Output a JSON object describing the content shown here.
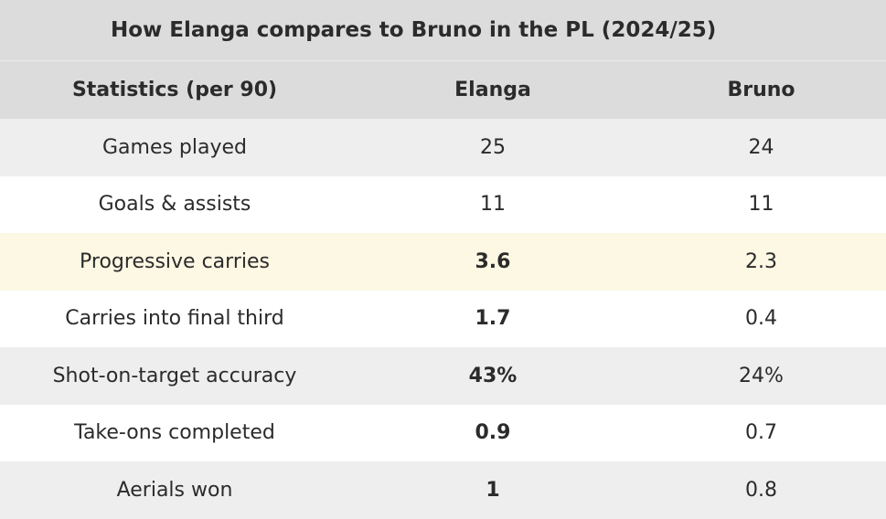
{
  "title": "How Elanga compares to Bruno in the PL (2024/25)",
  "headers": [
    "Statistics (per 90)",
    "Elanga",
    "Bruno"
  ],
  "rows": [
    {
      "label": "Games played",
      "elanga": "25",
      "bruno": "24",
      "elanga_bold": false,
      "style": "shade"
    },
    {
      "label": "Goals & assists",
      "elanga": "11",
      "bruno": "11",
      "elanga_bold": false,
      "style": "plain"
    },
    {
      "label": "Progressive carries",
      "elanga": "3.6",
      "bruno": "2.3",
      "elanga_bold": true,
      "style": "highlight"
    },
    {
      "label": "Carries into final third",
      "elanga": "1.7",
      "bruno": "0.4",
      "elanga_bold": true,
      "style": "plain"
    },
    {
      "label": "Shot-on-target accuracy",
      "elanga": "43%",
      "bruno": "24%",
      "elanga_bold": true,
      "style": "shade"
    },
    {
      "label": "Take-ons completed",
      "elanga": "0.9",
      "bruno": "0.7",
      "elanga_bold": true,
      "style": "plain"
    },
    {
      "label": "Aerials won",
      "elanga": "1",
      "bruno": "0.8",
      "elanga_bold": true,
      "style": "shade"
    }
  ],
  "colors": {
    "header_bg": "#dcdcdc",
    "row_shade": "#eeeeee",
    "row_highlight": "#fdf8e3",
    "row_plain": "#ffffff"
  }
}
